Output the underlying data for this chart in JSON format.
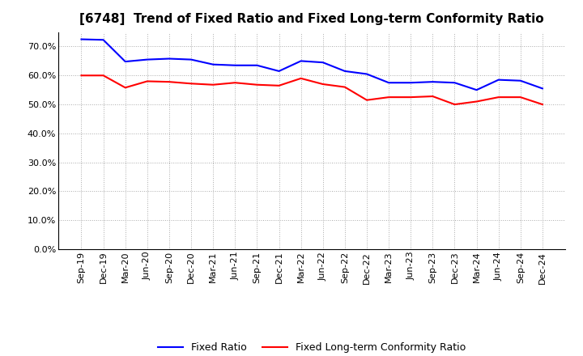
{
  "title": "[6748]  Trend of Fixed Ratio and Fixed Long-term Conformity Ratio",
  "x_labels": [
    "Sep-19",
    "Dec-19",
    "Mar-20",
    "Jun-20",
    "Sep-20",
    "Dec-20",
    "Mar-21",
    "Jun-21",
    "Sep-21",
    "Dec-21",
    "Mar-22",
    "Jun-22",
    "Sep-22",
    "Dec-22",
    "Mar-23",
    "Jun-23",
    "Sep-23",
    "Dec-23",
    "Mar-24",
    "Jun-24",
    "Sep-24",
    "Dec-24"
  ],
  "fixed_ratio": [
    72.5,
    72.3,
    64.8,
    65.5,
    65.8,
    65.5,
    63.8,
    63.5,
    63.5,
    61.5,
    65.0,
    64.5,
    61.5,
    60.5,
    57.5,
    57.5,
    57.8,
    57.5,
    55.0,
    58.5,
    58.2,
    55.5
  ],
  "fixed_lt_ratio": [
    60.0,
    60.0,
    55.8,
    58.0,
    57.8,
    57.2,
    56.8,
    57.5,
    56.8,
    56.5,
    59.0,
    57.0,
    56.0,
    51.5,
    52.5,
    52.5,
    52.8,
    50.0,
    51.0,
    52.5,
    52.5,
    50.0
  ],
  "fixed_ratio_color": "#0000FF",
  "fixed_lt_ratio_color": "#FF0000",
  "ylim": [
    0,
    75
  ],
  "yticks": [
    0.0,
    10.0,
    20.0,
    30.0,
    40.0,
    50.0,
    60.0,
    70.0
  ],
  "background_color": "#FFFFFF",
  "grid_color": "#AAAAAA",
  "legend_fixed_ratio": "Fixed Ratio",
  "legend_fixed_lt_ratio": "Fixed Long-term Conformity Ratio",
  "title_fontsize": 11,
  "tick_fontsize": 8,
  "legend_fontsize": 9
}
